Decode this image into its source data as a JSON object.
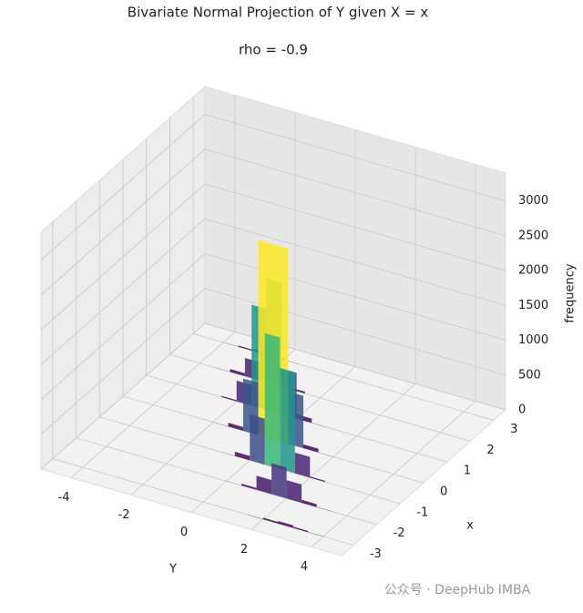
{
  "chart_data": {
    "type": "bar3d",
    "title": "Bivariate Normal Projection of Y given X = x",
    "subtitle": "rho = -0.9",
    "xlabel": "Y",
    "ylabel": "x",
    "zlabel": "frequency",
    "colormap": "viridis",
    "bins": [
      -4,
      -3.5,
      -3,
      -2.5,
      -2,
      -1.5,
      -1,
      -0.5,
      0,
      0.5,
      1,
      1.5,
      2,
      2.5,
      3,
      3.5,
      4
    ],
    "slices": [
      -3,
      -2,
      -1,
      0,
      1,
      2,
      3
    ],
    "counts": [
      [
        0,
        0,
        0,
        0,
        0,
        0,
        0,
        0,
        0,
        0,
        0,
        3,
        22,
        37,
        17,
        2
      ],
      [
        0,
        0,
        0,
        0,
        0,
        0,
        0,
        0,
        1,
        25,
        202,
        444,
        262,
        42,
        2,
        0
      ],
      [
        0,
        0,
        0,
        0,
        0,
        0,
        2,
        62,
        658,
        1886,
        1450,
        298,
        16,
        0,
        0,
        0
      ],
      [
        0,
        0,
        0,
        0,
        1,
        54,
        750,
        2800,
        2800,
        750,
        54,
        1,
        0,
        0,
        0,
        0
      ],
      [
        0,
        0,
        0,
        16,
        298,
        1450,
        1886,
        658,
        62,
        2,
        0,
        0,
        0,
        0,
        0,
        0
      ],
      [
        0,
        2,
        42,
        262,
        444,
        202,
        25,
        1,
        0,
        0,
        0,
        0,
        0,
        0,
        0,
        0
      ],
      [
        2,
        17,
        37,
        22,
        3,
        0,
        0,
        0,
        0,
        0,
        0,
        0,
        0,
        0,
        0,
        0
      ]
    ],
    "xlim": [
      -5,
      5
    ],
    "ylim": [
      -3.5,
      3.5
    ],
    "zlim": [
      0,
      3400
    ],
    "xticks": [
      -4,
      -2,
      0,
      2,
      4
    ],
    "yticks": [
      -3,
      -2,
      -1,
      0,
      1,
      2,
      3
    ],
    "zticks": [
      0,
      500,
      1000,
      1500,
      2000,
      2500,
      3000
    ],
    "watermark": "公众号 · DeepHub IMBA"
  }
}
